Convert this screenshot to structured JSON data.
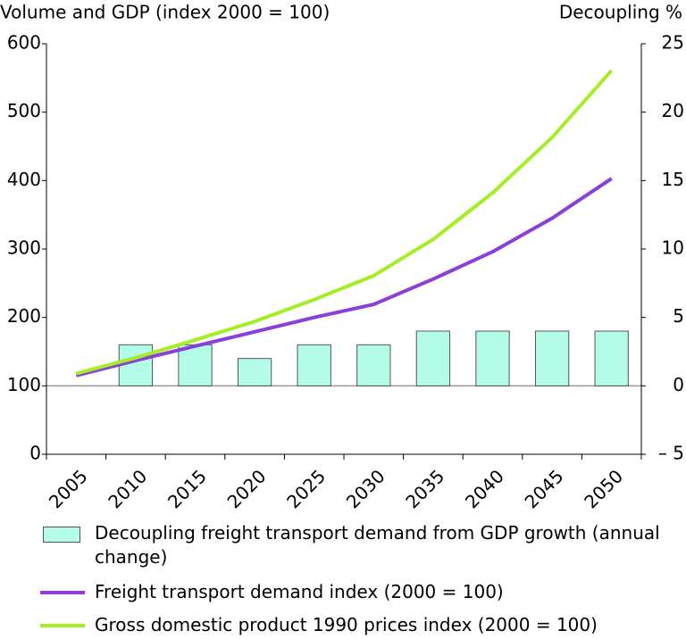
{
  "chart_data": {
    "type": "bar_line",
    "y_axis_label": "Volume and GDP (index 2000 = 100)",
    "y2_axis_label": "Decoupling %",
    "categories": [
      "2005",
      "2010",
      "2015",
      "2020",
      "2025",
      "2030",
      "2035",
      "2040",
      "2045",
      "2050"
    ],
    "series": [
      {
        "name": "Decoupling freight transport demand from GDP growth (annual change)",
        "type": "bar",
        "axis": "y2",
        "color": "#b3fce8",
        "values": [
          null,
          3,
          3,
          2,
          3,
          3,
          4,
          4,
          4,
          4
        ]
      },
      {
        "name": "Freight transport demand index (2000 = 100)",
        "type": "line",
        "color": "#8b3fd9",
        "values": [
          115,
          137,
          158,
          179,
          200,
          219,
          256,
          296,
          345,
          403
        ]
      },
      {
        "name": "Gross domestic product 1990 prices index (2000 = 100)",
        "type": "line",
        "color": "#a4ef24",
        "values": [
          118,
          141,
          167,
          194,
          226,
          261,
          314,
          382,
          463,
          561
        ]
      }
    ],
    "ylim": [
      0,
      600
    ],
    "yticks": [
      0,
      100,
      200,
      300,
      400,
      500,
      600
    ],
    "y2lim": [
      -5,
      25
    ],
    "y2ticks": [
      {
        "value": -5,
        "label": "– 5"
      },
      0,
      5,
      10,
      15,
      20,
      25
    ]
  }
}
